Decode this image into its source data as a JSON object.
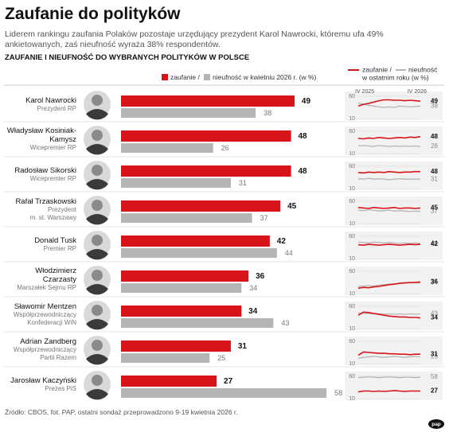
{
  "chart_data": {
    "type": "bar",
    "title": "Zaufanie do polityków",
    "subtitle": "Liderem rankingu zaufania Polaków pozostaje urzędujący prezydent Karol Nawrocki, któremu ufa 49% ankietowanych, zaś nieufność wyraża 38% respondentów.",
    "heading": "ZAUFANIE I NIEUFNOŚĆ DO WYBRANYCH POLITYKÓW W POLSCE",
    "categories": [
      "Karol Nawrocki",
      "Władysław Kosiniak-Kamysz",
      "Radosław Sikorski",
      "Rafał Trzaskowski",
      "Donald Tusk",
      "Włodzimierz Czarzasty",
      "Sławomir Mentzen",
      "Adrian Zandberg",
      "Jarosław Kaczyński"
    ],
    "roles": [
      [
        "Prezydent RP"
      ],
      [
        "Wicepremier RP"
      ],
      [
        "Wicepremier RP"
      ],
      [
        "Prezydent",
        "m. st. Warszawy"
      ],
      [
        "Premier RP"
      ],
      [
        "Marszałek Sejmu RP"
      ],
      [
        "Współprzewodniczący",
        "Konfederacji WiN"
      ],
      [
        "Współprzewodniczący",
        "Partii Razem"
      ],
      [
        "Prezes PiS"
      ]
    ],
    "series": [
      {
        "name": "zaufanie /",
        "color": "#d7141a",
        "values": [
          49,
          48,
          48,
          45,
          42,
          36,
          34,
          31,
          27
        ]
      },
      {
        "name": "nieufność w kwietniu 2026 r. (w %)",
        "color": "#b5b5b5",
        "values": [
          38,
          26,
          31,
          37,
          44,
          34,
          43,
          25,
          58
        ]
      }
    ],
    "trend": {
      "type": "line",
      "legend": [
        "zaufanie /",
        "nieufność"
      ],
      "note": "w ostatnim roku (w %)",
      "x_start": "IV 2025",
      "x_end": "IV 2026",
      "ylim": [
        10,
        60
      ],
      "yticks": [
        10,
        60
      ],
      "rows": [
        {
          "series": [
            {
              "values": [
                38,
                42,
                44,
                47,
                50,
                52,
                52,
                51,
                51,
                50,
                51,
                50,
                49
              ]
            },
            {
              "values": [
                45,
                42,
                40,
                38,
                36,
                35,
                36,
                35,
                38,
                37,
                36,
                37,
                38
              ]
            }
          ]
        },
        {
          "series": [
            {
              "values": [
                44,
                43,
                45,
                44,
                46,
                45,
                44,
                45,
                46,
                45,
                47,
                46,
                48
              ]
            },
            {
              "values": [
                27,
                28,
                27,
                26,
                28,
                27,
                26,
                27,
                26,
                27,
                26,
                27,
                26
              ]
            }
          ]
        },
        {
          "series": [
            {
              "values": [
                46,
                45,
                47,
                46,
                47,
                46,
                48,
                47,
                46,
                47,
                47,
                48,
                48
              ]
            },
            {
              "values": [
                32,
                31,
                33,
                31,
                32,
                31,
                30,
                31,
                32,
                31,
                31,
                31,
                31
              ]
            }
          ]
        },
        {
          "series": [
            {
              "values": [
                46,
                45,
                44,
                46,
                45,
                44,
                45,
                46,
                44,
                45,
                45,
                44,
                45
              ]
            },
            {
              "values": [
                40,
                39,
                41,
                40,
                38,
                39,
                40,
                38,
                39,
                38,
                37,
                38,
                37
              ]
            }
          ]
        },
        {
          "series": [
            {
              "values": [
                41,
                40,
                42,
                41,
                40,
                41,
                42,
                41,
                40,
                41,
                42,
                41,
                42
              ]
            },
            {
              "values": [
                47,
                46,
                45,
                47,
                46,
                45,
                46,
                45,
                44,
                45,
                44,
                45,
                44
              ]
            }
          ]
        },
        {
          "series": [
            {
              "values": [
                22,
                24,
                23,
                25,
                26,
                28,
                30,
                31,
                33,
                34,
                35,
                35,
                36
              ]
            },
            {
              "values": [
                26,
                27,
                28,
                27,
                29,
                30,
                31,
                32,
                33,
                33,
                34,
                34,
                34
              ]
            }
          ]
        },
        {
          "series": [
            {
              "values": [
                40,
                47,
                46,
                44,
                42,
                40,
                38,
                37,
                36,
                36,
                35,
                35,
                34
              ]
            },
            {
              "values": [
                45,
                44,
                44,
                43,
                43,
                42,
                43,
                42,
                43,
                42,
                43,
                42,
                43
              ]
            }
          ]
        },
        {
          "series": [
            {
              "values": [
                29,
                36,
                35,
                34,
                33,
                33,
                32,
                32,
                31,
                31,
                30,
                31,
                31
              ]
            },
            {
              "values": [
                22,
                24,
                25,
                26,
                25,
                24,
                25,
                26,
                25,
                24,
                25,
                26,
                25
              ]
            }
          ]
        },
        {
          "series": [
            {
              "values": [
                25,
                27,
                27,
                26,
                27,
                26,
                27,
                28,
                27,
                26,
                27,
                27,
                27
              ]
            },
            {
              "values": [
                57,
                58,
                59,
                58,
                57,
                58,
                59,
                58,
                57,
                58,
                58,
                57,
                58
              ]
            }
          ]
        }
      ]
    },
    "source": "Źródło: CBOS, fot. PAP, ostatni sondaż przeprowadzono 9-19 kwietnia 2026 r.",
    "logo": "pap"
  }
}
